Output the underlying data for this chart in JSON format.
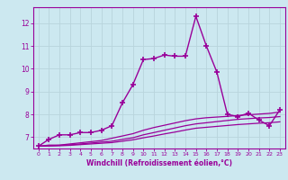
{
  "background_color": "#cce8f0",
  "grid_color": "#b8d4dc",
  "line_color": "#990099",
  "xlabel": "Windchill (Refroidissement éolien,°C)",
  "xlabel_color": "#990099",
  "tick_color": "#990099",
  "spine_color": "#990099",
  "xlim": [
    -0.5,
    23.5
  ],
  "ylim": [
    6.5,
    12.7
  ],
  "yticks": [
    7,
    8,
    9,
    10,
    11,
    12
  ],
  "xticks": [
    0,
    1,
    2,
    3,
    4,
    5,
    6,
    7,
    8,
    9,
    10,
    11,
    12,
    13,
    14,
    15,
    16,
    17,
    18,
    19,
    20,
    21,
    22,
    23
  ],
  "series": [
    {
      "x": [
        0,
        1,
        2,
        3,
        4,
        5,
        6,
        7,
        8,
        9,
        10,
        11,
        12,
        13,
        14,
        15,
        16,
        17,
        18,
        19,
        20,
        21,
        22,
        23
      ],
      "y": [
        6.6,
        6.9,
        7.1,
        7.1,
        7.2,
        7.2,
        7.3,
        7.5,
        8.5,
        9.3,
        10.4,
        10.45,
        10.6,
        10.55,
        10.55,
        12.3,
        11.0,
        9.85,
        8.0,
        7.9,
        8.05,
        7.75,
        7.5,
        8.2
      ],
      "marker": "+",
      "markersize": 4,
      "linewidth": 1.0,
      "zorder": 3
    },
    {
      "x": [
        0,
        1,
        2,
        3,
        4,
        5,
        6,
        7,
        8,
        9,
        10,
        11,
        12,
        13,
        14,
        15,
        16,
        17,
        18,
        19,
        20,
        21,
        22,
        23
      ],
      "y": [
        6.6,
        6.65,
        6.65,
        6.7,
        6.75,
        6.8,
        6.85,
        6.95,
        7.05,
        7.15,
        7.3,
        7.42,
        7.52,
        7.62,
        7.72,
        7.8,
        7.85,
        7.88,
        7.91,
        7.95,
        7.98,
        8.01,
        8.04,
        8.1
      ],
      "marker": null,
      "markersize": 0,
      "linewidth": 0.9,
      "zorder": 2
    },
    {
      "x": [
        0,
        1,
        2,
        3,
        4,
        5,
        6,
        7,
        8,
        9,
        10,
        11,
        12,
        13,
        14,
        15,
        16,
        17,
        18,
        19,
        20,
        21,
        22,
        23
      ],
      "y": [
        6.6,
        6.62,
        6.64,
        6.66,
        6.7,
        6.74,
        6.78,
        6.82,
        6.9,
        6.97,
        7.1,
        7.2,
        7.3,
        7.4,
        7.5,
        7.58,
        7.63,
        7.68,
        7.73,
        7.78,
        7.81,
        7.84,
        7.86,
        7.9
      ],
      "marker": null,
      "markersize": 0,
      "linewidth": 0.9,
      "zorder": 2
    },
    {
      "x": [
        0,
        1,
        2,
        3,
        4,
        5,
        6,
        7,
        8,
        9,
        10,
        11,
        12,
        13,
        14,
        15,
        16,
        17,
        18,
        19,
        20,
        21,
        22,
        23
      ],
      "y": [
        6.6,
        6.61,
        6.62,
        6.64,
        6.67,
        6.7,
        6.73,
        6.76,
        6.82,
        6.88,
        6.97,
        7.05,
        7.14,
        7.22,
        7.31,
        7.39,
        7.43,
        7.47,
        7.51,
        7.55,
        7.58,
        7.61,
        7.63,
        7.67
      ],
      "marker": null,
      "markersize": 0,
      "linewidth": 0.9,
      "zorder": 2
    }
  ]
}
